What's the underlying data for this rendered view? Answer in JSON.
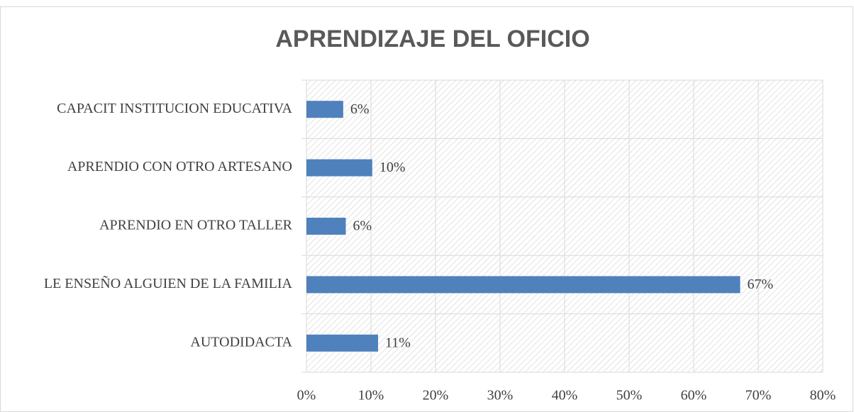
{
  "chart_data": {
    "type": "hbar",
    "title": "APRENDIZAJE DEL OFICIO",
    "categories": [
      "CAPACIT INSTITUCION EDUCATIVA",
      "APRENDIO CON OTRO ARTESANO",
      "APRENDIO EN OTRO TALLER",
      "LE ENSEÑO ALGUIEN DE LA FAMILIA",
      "AUTODIDACTA"
    ],
    "values": [
      5.7,
      10.2,
      6.1,
      67.2,
      11.1
    ],
    "value_labels": [
      "6%",
      "10%",
      "6%",
      "67%",
      "11%"
    ],
    "color": "#4f81bd",
    "xlim": [
      0,
      80
    ],
    "xticks": [
      {
        "value": 0,
        "label": "0%"
      },
      {
        "value": 10,
        "label": "10%"
      },
      {
        "value": 20,
        "label": "20%"
      },
      {
        "value": 30,
        "label": "30%"
      },
      {
        "value": 40,
        "label": "40%"
      },
      {
        "value": 50,
        "label": "50%"
      },
      {
        "value": 60,
        "label": "60%"
      },
      {
        "value": 70,
        "label": "70%"
      },
      {
        "value": 80,
        "label": "80%"
      }
    ],
    "grid": true
  }
}
